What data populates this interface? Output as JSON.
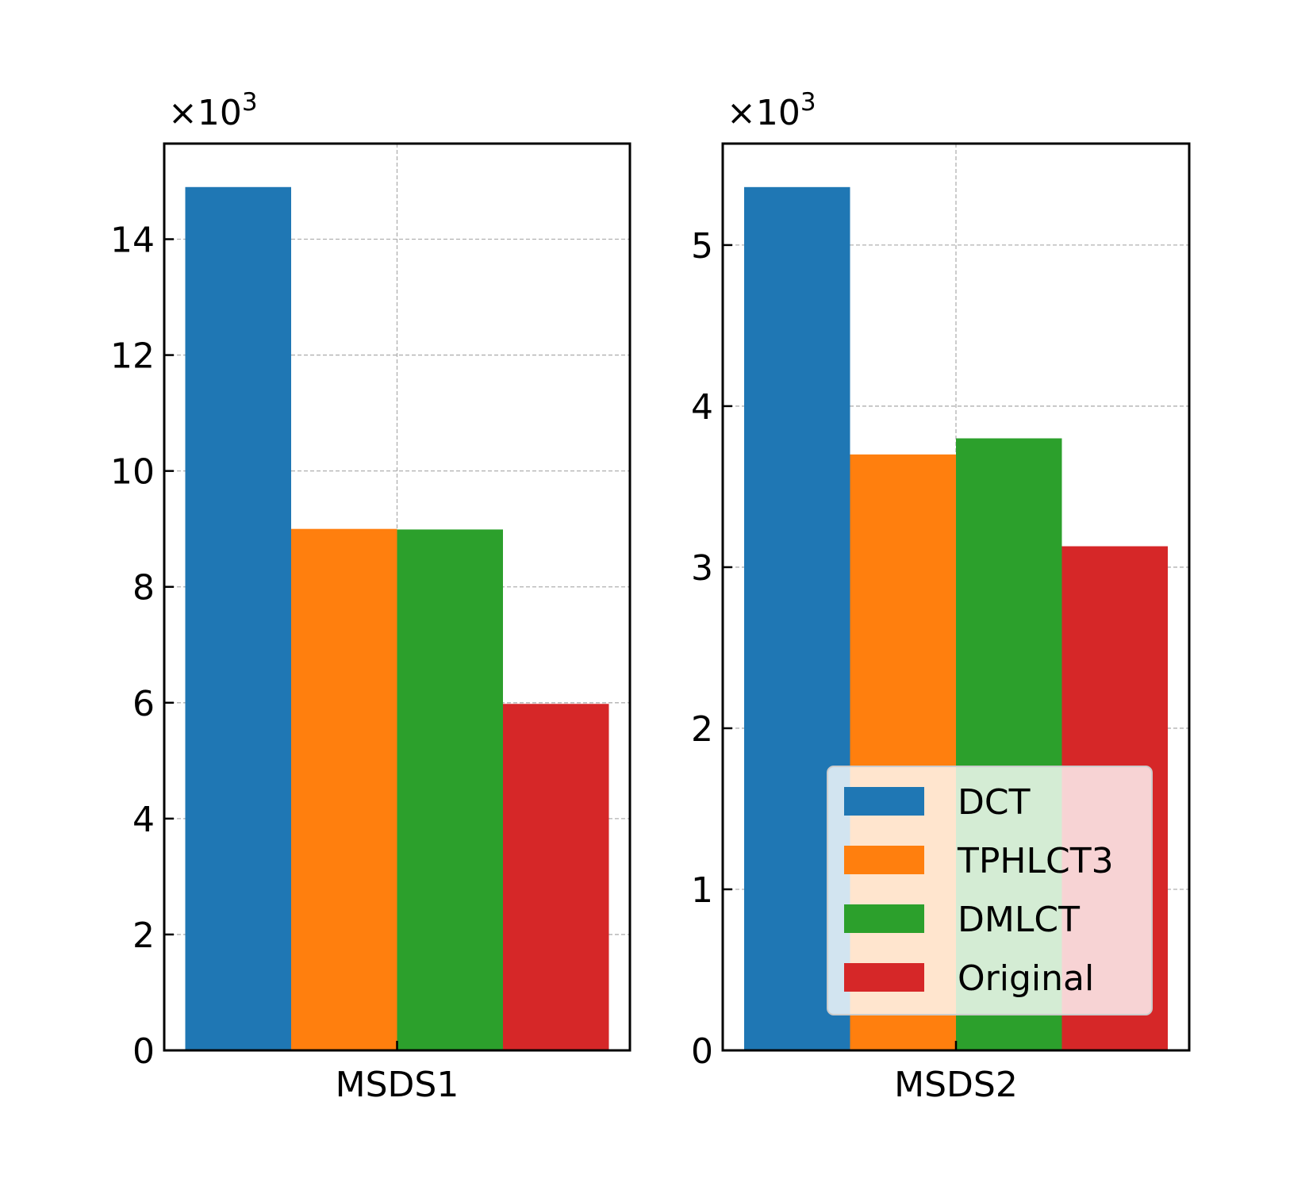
{
  "chart_data": [
    {
      "type": "bar",
      "categories": [
        "MSDS1"
      ],
      "multiplier_base": "×10",
      "multiplier_exp": "3",
      "ylim": [
        0,
        15.65
      ],
      "yticks": [
        0,
        2,
        4,
        6,
        8,
        10,
        12,
        14
      ],
      "grid": true,
      "series": [
        {
          "name": "DCT",
          "values": [
            14.9
          ]
        },
        {
          "name": "TPHLCT3",
          "values": [
            9.0
          ]
        },
        {
          "name": "DMLCT",
          "values": [
            8.99
          ]
        },
        {
          "name": "Original",
          "values": [
            5.98
          ]
        }
      ]
    },
    {
      "type": "bar",
      "categories": [
        "MSDS2"
      ],
      "multiplier_base": "×10",
      "multiplier_exp": "3",
      "ylim": [
        0,
        5.63
      ],
      "yticks": [
        0,
        1,
        2,
        3,
        4,
        5
      ],
      "grid": true,
      "legend_position": "lower right",
      "series": [
        {
          "name": "DCT",
          "values": [
            5.36
          ]
        },
        {
          "name": "TPHLCT3",
          "values": [
            3.7
          ]
        },
        {
          "name": "DMLCT",
          "values": [
            3.8
          ]
        },
        {
          "name": "Original",
          "values": [
            3.13
          ]
        }
      ]
    }
  ],
  "colors": [
    "#1f77b4",
    "#ff7f0e",
    "#2ca02c",
    "#d62728"
  ],
  "legend": [
    "DCT",
    "TPHLCT3",
    "DMLCT",
    "Original"
  ]
}
